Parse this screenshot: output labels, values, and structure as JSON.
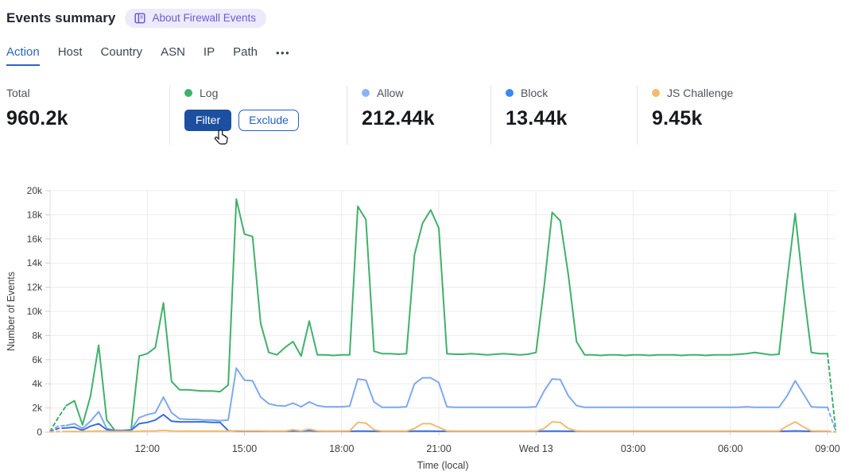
{
  "page": {
    "title": "Events summary"
  },
  "about": {
    "label": "About Firewall Events"
  },
  "tabs": [
    {
      "label": "Action",
      "active": true
    },
    {
      "label": "Host"
    },
    {
      "label": "Country"
    },
    {
      "label": "ASN"
    },
    {
      "label": "IP"
    },
    {
      "label": "Path"
    },
    {
      "label": "•••"
    }
  ],
  "stats": {
    "total": {
      "label": "Total",
      "value": "960.2k"
    },
    "log": {
      "label": "Log",
      "color": "#3fb16a",
      "filter_label": "Filter",
      "exclude_label": "Exclude"
    },
    "allow": {
      "label": "Allow",
      "value": "212.44k",
      "color": "#8db3f5"
    },
    "block": {
      "label": "Block",
      "value": "13.44k",
      "color": "#3c87f2"
    },
    "js_challenge": {
      "label": "JS Challenge",
      "value": "9.45k",
      "color": "#f3bb6d"
    }
  },
  "chart_data": {
    "type": "line",
    "xlabel": "Time (local)",
    "ylabel": "Number of Events",
    "ylim_thousands": [
      0,
      20
    ],
    "y_ticks": [
      "0",
      "2k",
      "4k",
      "6k",
      "8k",
      "10k",
      "12k",
      "14k",
      "16k",
      "18k",
      "20k"
    ],
    "x_start": "Tue 09:00",
    "x_step_minutes": 15,
    "x_ticks": [
      {
        "minutes": 180,
        "label": "12:00"
      },
      {
        "minutes": 360,
        "label": "15:00"
      },
      {
        "minutes": 540,
        "label": "18:00"
      },
      {
        "minutes": 720,
        "label": "21:00"
      },
      {
        "minutes": 900,
        "label": "Wed 13"
      },
      {
        "minutes": 1080,
        "label": "03:00"
      },
      {
        "minutes": 1260,
        "label": "06:00"
      },
      {
        "minutes": 1440,
        "label": "09:00"
      }
    ],
    "unit": "thousands of events",
    "dashed_head_points": 2,
    "tail_minutes": 1455,
    "series": [
      {
        "name": "Log",
        "color": "#3fb16a",
        "tail_value": 0.2,
        "values": [
          0.05,
          1.2,
          2.2,
          2.6,
          0.6,
          3.0,
          7.2,
          1.0,
          0.15,
          0.1,
          0.2,
          6.3,
          6.5,
          7.0,
          10.7,
          4.2,
          3.5,
          3.5,
          3.45,
          3.4,
          3.4,
          3.35,
          3.9,
          19.3,
          16.4,
          16.2,
          9.0,
          6.6,
          6.4,
          7.0,
          7.5,
          6.3,
          9.2,
          6.4,
          6.4,
          6.35,
          6.4,
          6.4,
          18.7,
          17.6,
          6.7,
          6.5,
          6.5,
          6.45,
          6.5,
          14.7,
          17.3,
          18.4,
          16.9,
          6.5,
          6.45,
          6.45,
          6.5,
          6.45,
          6.4,
          6.45,
          6.5,
          6.45,
          6.4,
          6.45,
          6.6,
          12.0,
          18.2,
          17.5,
          13.0,
          7.5,
          6.4,
          6.4,
          6.35,
          6.4,
          6.4,
          6.35,
          6.4,
          6.4,
          6.35,
          6.4,
          6.4,
          6.4,
          6.35,
          6.4,
          6.4,
          6.35,
          6.4,
          6.4,
          6.4,
          6.45,
          6.5,
          6.6,
          6.5,
          6.4,
          6.45,
          12.5,
          18.1,
          12.0,
          6.6,
          6.5,
          6.5
        ]
      },
      {
        "name": "Allow",
        "color": "#7ea9f1",
        "tail_value": 0.1,
        "values": [
          0.05,
          0.5,
          0.55,
          0.7,
          0.3,
          0.9,
          1.7,
          0.3,
          0.15,
          0.15,
          0.2,
          1.2,
          1.45,
          1.6,
          2.9,
          1.6,
          1.1,
          1.05,
          1.05,
          1.0,
          1.0,
          0.95,
          1.0,
          5.3,
          4.3,
          4.25,
          2.9,
          2.35,
          2.2,
          2.15,
          2.4,
          2.1,
          2.5,
          2.2,
          2.1,
          2.1,
          2.1,
          2.15,
          4.4,
          4.3,
          2.5,
          2.05,
          2.05,
          2.05,
          2.1,
          4.0,
          4.5,
          4.5,
          4.1,
          2.1,
          2.05,
          2.05,
          2.05,
          2.05,
          2.05,
          2.05,
          2.05,
          2.05,
          2.05,
          2.05,
          2.1,
          3.4,
          4.4,
          4.35,
          3.0,
          2.2,
          2.05,
          2.05,
          2.05,
          2.05,
          2.05,
          2.05,
          2.05,
          2.05,
          2.05,
          2.05,
          2.05,
          2.05,
          2.05,
          2.05,
          2.05,
          2.05,
          2.05,
          2.05,
          2.05,
          2.05,
          2.1,
          2.05,
          2.05,
          2.05,
          2.05,
          3.0,
          4.25,
          3.2,
          2.1,
          2.05,
          2.05
        ]
      },
      {
        "name": "Block",
        "color": "#3a6fdd",
        "tail_value": 0.02,
        "values": [
          0.03,
          0.3,
          0.35,
          0.4,
          0.15,
          0.5,
          0.7,
          0.2,
          0.1,
          0.1,
          0.15,
          0.7,
          0.8,
          1.0,
          1.45,
          0.9,
          0.85,
          0.85,
          0.85,
          0.85,
          0.8,
          0.8,
          0.12,
          0.08,
          0.07,
          0.07,
          0.07,
          0.07,
          0.07,
          0.07,
          0.1,
          0.08,
          0.12,
          0.07,
          0.07,
          0.07,
          0.07,
          0.07,
          0.08,
          0.08,
          0.07,
          0.07,
          0.07,
          0.07,
          0.07,
          0.08,
          0.08,
          0.08,
          0.07,
          0.07,
          0.07,
          0.07,
          0.07,
          0.07,
          0.07,
          0.07,
          0.07,
          0.07,
          0.07,
          0.07,
          0.07,
          0.08,
          0.08,
          0.08,
          0.07,
          0.07,
          0.07,
          0.07,
          0.07,
          0.07,
          0.07,
          0.07,
          0.07,
          0.07,
          0.07,
          0.07,
          0.07,
          0.07,
          0.07,
          0.07,
          0.07,
          0.07,
          0.07,
          0.07,
          0.07,
          0.07,
          0.07,
          0.07,
          0.07,
          0.07,
          0.07,
          0.08,
          0.1,
          0.08,
          0.07,
          0.07,
          0.07
        ]
      },
      {
        "name": "JS Challenge",
        "color": "#f3bb6d",
        "tail_value": 0.02,
        "values": [
          0.02,
          0.05,
          0.06,
          0.06,
          0.05,
          0.07,
          0.1,
          0.06,
          0.05,
          0.05,
          0.05,
          0.08,
          0.1,
          0.1,
          0.15,
          0.1,
          0.08,
          0.08,
          0.08,
          0.08,
          0.08,
          0.08,
          0.08,
          0.12,
          0.1,
          0.1,
          0.1,
          0.08,
          0.08,
          0.08,
          0.2,
          0.1,
          0.25,
          0.1,
          0.08,
          0.08,
          0.08,
          0.1,
          0.8,
          0.75,
          0.2,
          0.08,
          0.08,
          0.08,
          0.08,
          0.3,
          0.7,
          0.7,
          0.4,
          0.1,
          0.08,
          0.08,
          0.08,
          0.08,
          0.08,
          0.08,
          0.08,
          0.08,
          0.08,
          0.08,
          0.08,
          0.3,
          0.85,
          0.8,
          0.3,
          0.1,
          0.08,
          0.08,
          0.08,
          0.08,
          0.08,
          0.08,
          0.08,
          0.08,
          0.08,
          0.08,
          0.08,
          0.08,
          0.08,
          0.08,
          0.08,
          0.08,
          0.08,
          0.08,
          0.08,
          0.08,
          0.08,
          0.08,
          0.08,
          0.08,
          0.08,
          0.5,
          0.85,
          0.45,
          0.1,
          0.08,
          0.08
        ]
      }
    ]
  }
}
